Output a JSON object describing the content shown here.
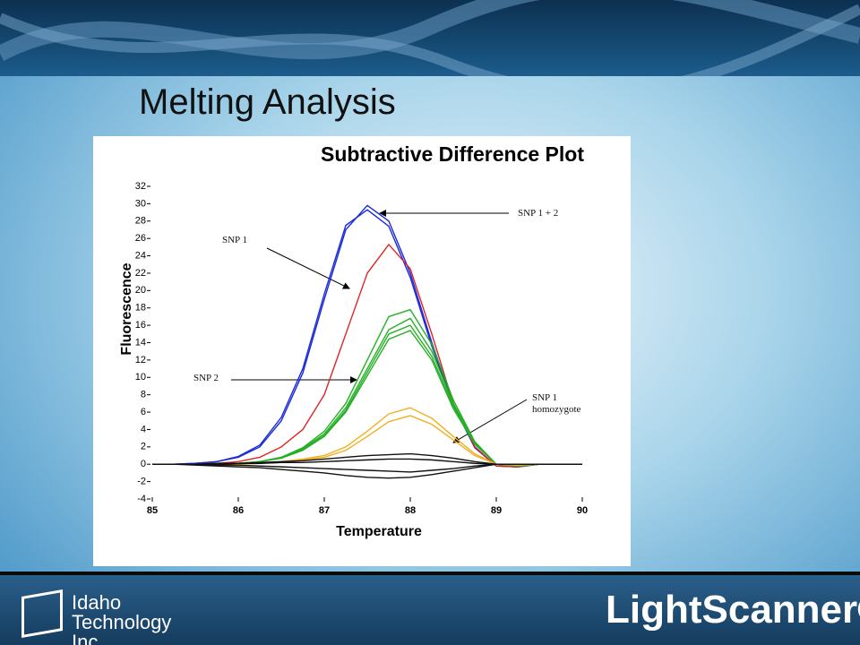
{
  "slide_title": "Melting Analysis",
  "footer": {
    "company": "Idaho Technology Inc.",
    "product": "LightScanner®"
  },
  "chart_data": {
    "type": "line",
    "title": "Subtractive Difference Plot",
    "x_label": "Temperature",
    "y_label": "Fluorescence",
    "x": [
      85,
      85.25,
      85.5,
      85.75,
      86,
      86.25,
      86.5,
      86.75,
      87,
      87.25,
      87.5,
      87.75,
      88,
      88.25,
      88.5,
      88.75,
      89,
      89.25,
      89.5,
      89.75,
      90
    ],
    "series": [
      {
        "color": "#1a2bd6",
        "values": [
          0,
          0,
          0.1,
          0.3,
          0.8,
          2,
          5,
          10.5,
          19,
          27,
          29.8,
          28,
          22,
          14,
          7,
          2,
          -0.2,
          -0.3,
          0,
          0,
          0
        ]
      },
      {
        "color": "#1a2bd6",
        "values": [
          0,
          0,
          0.1,
          0.3,
          0.9,
          2.2,
          5.4,
          11,
          19.6,
          27.5,
          29.3,
          27.4,
          21.5,
          13.6,
          6.8,
          1.9,
          -0.2,
          -0.3,
          0,
          0,
          0
        ]
      },
      {
        "color": "#e02424",
        "values": [
          0,
          0,
          0,
          0.1,
          0.3,
          0.8,
          2,
          4,
          8,
          15,
          22,
          25.3,
          22.5,
          15,
          7,
          2,
          -0.2,
          -0.3,
          0,
          0,
          0
        ]
      },
      {
        "color": "#26b026",
        "values": [
          0,
          0,
          0,
          0,
          0.1,
          0.3,
          0.8,
          1.8,
          3.5,
          6.5,
          11,
          15.5,
          16.8,
          13,
          7,
          2.5,
          0,
          -0.2,
          0,
          0,
          0
        ]
      },
      {
        "color": "#26b026",
        "values": [
          0,
          0,
          0,
          0,
          0.1,
          0.3,
          0.8,
          1.9,
          3.8,
          7,
          12,
          17,
          17.8,
          13.8,
          7.4,
          2.6,
          0,
          -0.2,
          0,
          0,
          0
        ]
      },
      {
        "color": "#26b026",
        "values": [
          0,
          0,
          0,
          0,
          0.1,
          0.3,
          0.7,
          1.6,
          3.2,
          6,
          10.2,
          14.4,
          15.4,
          12,
          6.4,
          2.3,
          0,
          -0.2,
          0,
          0,
          0
        ]
      },
      {
        "color": "#26b026",
        "values": [
          0,
          0,
          0,
          0,
          0.1,
          0.3,
          0.7,
          1.7,
          3.3,
          6.2,
          10.6,
          15,
          16,
          12.4,
          6.7,
          2.4,
          0,
          -0.2,
          0,
          0,
          0
        ]
      },
      {
        "color": "#f0b020",
        "values": [
          0,
          0,
          0,
          0,
          0,
          0.1,
          0.3,
          0.6,
          1,
          2,
          3.8,
          5.8,
          6.5,
          5.3,
          3.2,
          1.2,
          0,
          -0.1,
          0,
          0,
          0
        ]
      },
      {
        "color": "#f0b020",
        "values": [
          0,
          0,
          0,
          0,
          0,
          0.1,
          0.2,
          0.5,
          0.8,
          1.6,
          3.2,
          4.9,
          5.6,
          4.6,
          2.8,
          1,
          0,
          -0.1,
          0,
          0,
          0
        ]
      },
      {
        "color": "#111111",
        "values": [
          0,
          0,
          -0.1,
          -0.2,
          -0.3,
          -0.4,
          -0.6,
          -0.8,
          -1,
          -1.3,
          -1.5,
          -1.6,
          -1.5,
          -1.2,
          -0.8,
          -0.4,
          0,
          0,
          0,
          0,
          0
        ]
      },
      {
        "color": "#111111",
        "values": [
          0,
          0,
          0,
          0.1,
          0.1,
          0.2,
          0.3,
          0.4,
          0.6,
          0.8,
          1,
          1.1,
          1.2,
          1,
          0.7,
          0.3,
          0,
          0,
          0,
          0,
          0
        ]
      },
      {
        "color": "#111111",
        "values": [
          0,
          0,
          0,
          -0.1,
          -0.1,
          -0.2,
          -0.3,
          -0.4,
          -0.5,
          -0.6,
          -0.7,
          -0.8,
          -0.9,
          -0.7,
          -0.5,
          -0.2,
          0,
          0,
          0,
          0,
          0
        ]
      },
      {
        "color": "#111111",
        "values": [
          0,
          0,
          0,
          0,
          0.1,
          0.1,
          0.2,
          0.2,
          0.3,
          0.4,
          0.5,
          0.6,
          0.6,
          0.5,
          0.3,
          0.1,
          0,
          0,
          0,
          0,
          0
        ]
      }
    ],
    "annotations": [
      "SNP 1 + 2",
      "SNP 1",
      "SNP 2",
      "SNP 1 homozygote"
    ],
    "xlim": [
      85,
      90
    ],
    "xticks": [
      85,
      86,
      87,
      88,
      89,
      90
    ],
    "ylim": [
      -4,
      32
    ],
    "yticks": [
      -4,
      -2,
      0,
      2,
      4,
      6,
      8,
      10,
      12,
      14,
      16,
      18,
      20,
      22,
      24,
      26,
      28,
      30,
      32
    ]
  }
}
